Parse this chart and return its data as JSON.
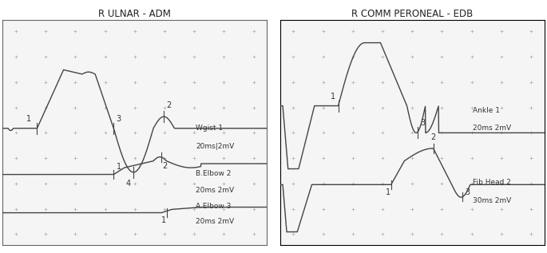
{
  "title_left": "R ULNAR - ADM",
  "title_right": "R COMM PERONEAL - EDB",
  "bg_color": "#f2f2f2",
  "dot_color": "#999999",
  "line_color": "#444444",
  "wrist1_label": "Wgist 1",
  "wrist1_scale": "20ms|2mV",
  "belbow2_label": "B.Elbow 2",
  "belbow2_scale": "20ms 2mV",
  "aelbow3_label": "A.Elbow 3",
  "aelbow3_scale": "20ms 2mV",
  "ankle1_label": "Ankle 1",
  "ankle1_scale": "20ms 2mV",
  "fibhead2_label": "Fib Head 2",
  "fibhead2_scale": "30ms 2mV"
}
